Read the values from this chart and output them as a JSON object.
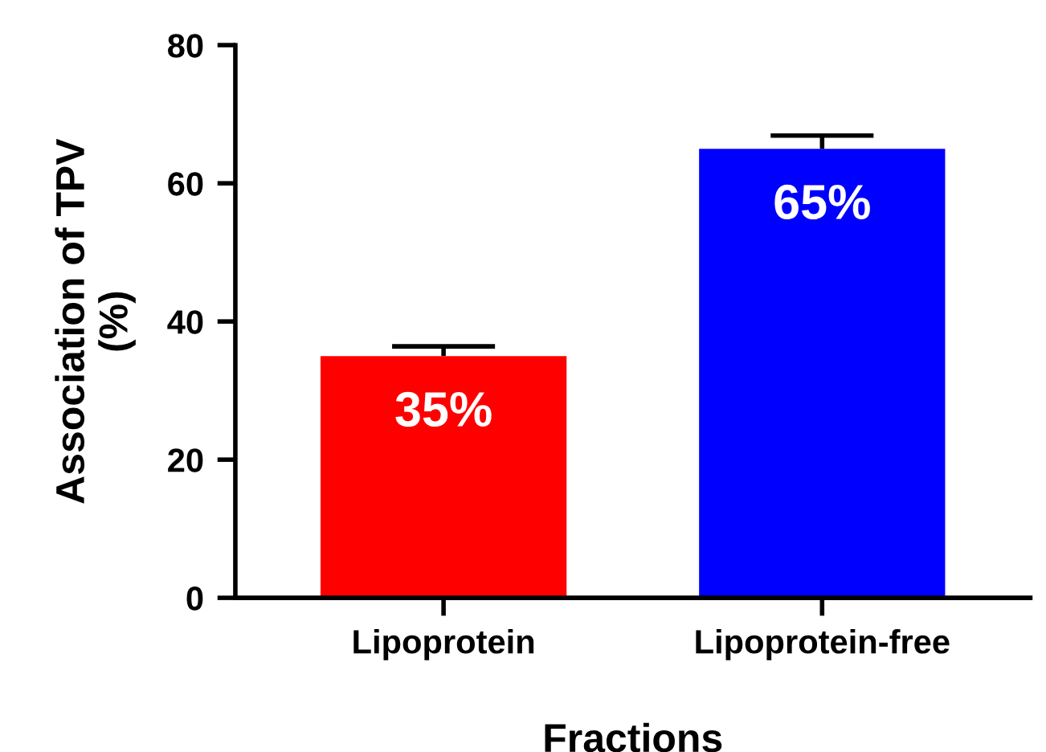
{
  "chart_data": {
    "type": "bar",
    "xlabel": "Fractions",
    "ylabel": "Association of TPV\n(%)",
    "categories": [
      "Lipoprotein",
      "Lipoprotein-free"
    ],
    "values": [
      35,
      65
    ],
    "colors": [
      "#ff0000",
      "#0000ff"
    ],
    "errors": [
      [
        35,
        36.4
      ],
      [
        65,
        66.9
      ]
    ],
    "value_labels": [
      "35%",
      "65%"
    ],
    "ylim": [
      0,
      80
    ],
    "yticks": [
      0,
      20,
      40,
      60,
      80
    ],
    "grid": false,
    "legend": false
  }
}
